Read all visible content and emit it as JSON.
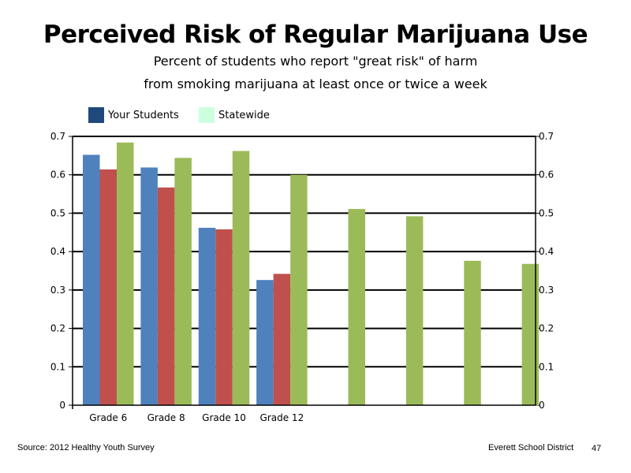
{
  "page": {
    "source": "Source: 2012 Healthy Youth Survey",
    "district": "Everett School District",
    "page_number": "47"
  },
  "chart_data": {
    "type": "bar",
    "title": "Perceived Risk of Regular Marijuana Use",
    "subtitle": [
      "Percent of students who report \"great risk\" of harm",
      "from smoking marijuana at least once or twice a week"
    ],
    "categories": [
      "Grade 6",
      "Grade 8",
      "Grade 10",
      "Grade 12",
      "",
      "",
      "",
      ""
    ],
    "series": [
      {
        "values": [
          0.652,
          0.619,
          0.462,
          0.326,
          null,
          null,
          null,
          null
        ],
        "color": "#4F81BD"
      },
      {
        "values": [
          0.614,
          0.567,
          0.458,
          0.342,
          null,
          null,
          null,
          null
        ],
        "color": "#C0504D"
      },
      {
        "values": [
          0.684,
          0.644,
          0.662,
          0.6,
          0.511,
          0.492,
          0.376,
          0.368
        ],
        "color": "#9BBB59"
      }
    ],
    "legend": {
      "position": "top-left",
      "items": [
        {
          "label": "Your Students",
          "color": "#1F497D"
        },
        {
          "label": "Statewide",
          "color": "#CCFFE0"
        }
      ]
    },
    "xlabel": "",
    "ylabel": "",
    "ylim": [
      0,
      0.7
    ],
    "yticks": [
      "0",
      "0.1",
      "0.2",
      "0.3",
      "0.4",
      "0.5",
      "0.6",
      "0.7"
    ],
    "grid": true,
    "secondary_y_axis": true
  }
}
